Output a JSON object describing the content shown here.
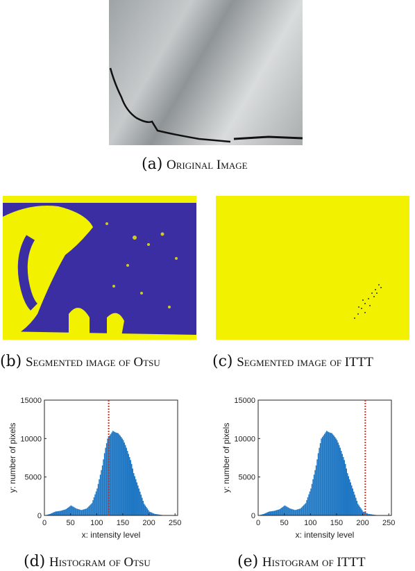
{
  "figure": {
    "original": {
      "label": "(a)",
      "caption": "Original Image"
    },
    "otsu_seg": {
      "label": "(b)",
      "caption": "Segmented image of Otsu"
    },
    "ittt_seg": {
      "label": "(c)",
      "caption": "Segmented image of ITTT"
    },
    "otsu_hist": {
      "label": "(d)",
      "caption": "Histogram of Otsu"
    },
    "ittt_hist": {
      "label": "(e)",
      "caption": "Histogram of ITTT"
    }
  },
  "colors": {
    "segment_background": "#f2f200",
    "segment_foreground": "#3b2ea3",
    "histogram_bar": "#1f77c4",
    "threshold_line": "#c0392b"
  },
  "chart_data": [
    {
      "type": "bar",
      "title": "",
      "xlabel": "x: intensity level",
      "ylabel": "y: number of pixels",
      "xlim": [
        0,
        255
      ],
      "ylim": [
        0,
        15000
      ],
      "xticks": [
        "0",
        "50",
        "100",
        "150",
        "200",
        "250"
      ],
      "yticks": [
        "0",
        "5000",
        "10000",
        "15000"
      ],
      "threshold": 123,
      "series": [
        {
          "x": [
            0,
            10,
            20,
            30,
            40,
            50,
            60,
            70,
            80,
            90,
            100,
            110,
            115,
            120,
            125,
            130,
            135,
            140,
            145,
            150,
            155,
            160,
            165,
            170,
            180,
            190,
            200,
            210,
            220,
            230,
            240,
            250
          ],
          "values": [
            0,
            200,
            500,
            600,
            800,
            1300,
            900,
            700,
            900,
            1600,
            3500,
            6500,
            8500,
            10000,
            10500,
            11000,
            10800,
            10700,
            10300,
            9800,
            9000,
            8000,
            7000,
            5500,
            3500,
            1500,
            500,
            200,
            100,
            0,
            0,
            0
          ]
        }
      ]
    },
    {
      "type": "bar",
      "title": "",
      "xlabel": "x: intensity level",
      "ylabel": "y: number of pixels",
      "xlim": [
        0,
        255
      ],
      "ylim": [
        0,
        15000
      ],
      "xticks": [
        "0",
        "50",
        "100",
        "150",
        "200",
        "250"
      ],
      "yticks": [
        "0",
        "5000",
        "10000",
        "15000"
      ],
      "threshold": 205,
      "series": [
        {
          "x": [
            0,
            10,
            20,
            30,
            40,
            50,
            60,
            70,
            80,
            90,
            100,
            110,
            115,
            120,
            125,
            130,
            135,
            140,
            145,
            150,
            155,
            160,
            165,
            170,
            180,
            190,
            200,
            210,
            220,
            230,
            240,
            250
          ],
          "values": [
            0,
            200,
            500,
            600,
            800,
            1300,
            900,
            700,
            900,
            1600,
            3500,
            6500,
            8500,
            10000,
            10500,
            11000,
            10800,
            10700,
            10300,
            9800,
            9000,
            8000,
            7000,
            5500,
            3500,
            1500,
            500,
            200,
            100,
            0,
            0,
            0
          ]
        }
      ]
    }
  ]
}
